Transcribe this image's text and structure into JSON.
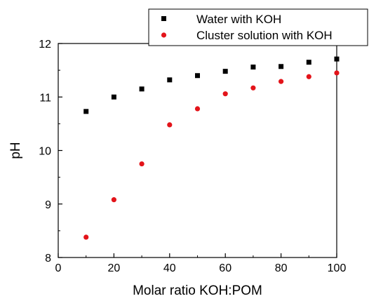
{
  "chart_data": {
    "type": "scatter",
    "title": "",
    "xlabel": "Molar ratio KOH:POM",
    "ylabel": "pH",
    "xlim": [
      0,
      100
    ],
    "ylim": [
      8,
      12
    ],
    "xticks": [
      "0",
      "20",
      "40",
      "60",
      "80",
      "100"
    ],
    "yticks": [
      "8",
      "9",
      "10",
      "11",
      "12"
    ],
    "grid": false,
    "legend_position": "top-right",
    "series": [
      {
        "name": "Water with KOH",
        "marker": "square",
        "color": "#000000",
        "x": [
          10,
          20,
          30,
          40,
          50,
          60,
          70,
          80,
          90,
          100
        ],
        "y": [
          10.73,
          11.0,
          11.15,
          11.32,
          11.4,
          11.48,
          11.56,
          11.57,
          11.65,
          11.71
        ]
      },
      {
        "name": "Cluster solution with KOH",
        "marker": "circle",
        "color": "#e3141a",
        "x": [
          10,
          20,
          30,
          40,
          50,
          60,
          70,
          80,
          90,
          100
        ],
        "y": [
          8.38,
          9.08,
          9.75,
          10.48,
          10.78,
          11.06,
          11.17,
          11.29,
          11.38,
          11.45
        ]
      }
    ]
  }
}
